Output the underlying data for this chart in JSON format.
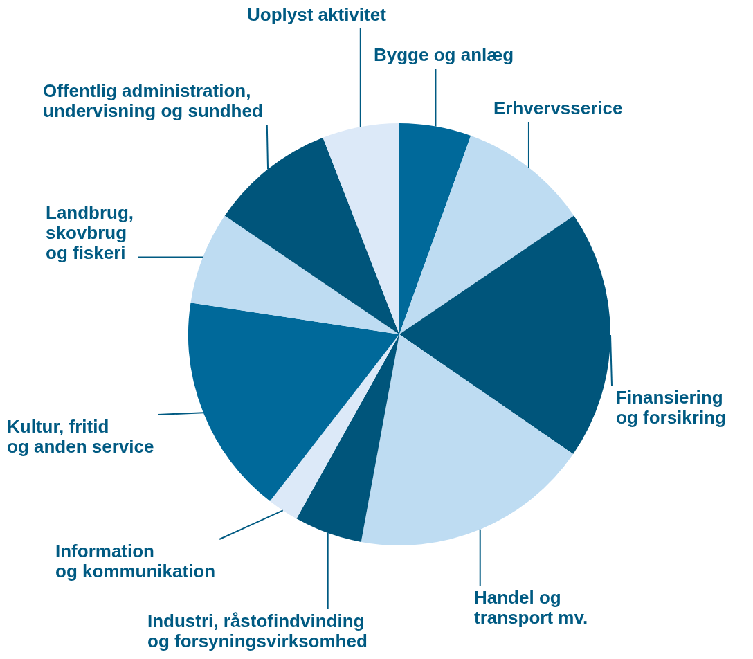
{
  "chart_data": {
    "type": "pie",
    "categories": [
      "Bygge og anlæg",
      "Erhvervsserice",
      "Finansiering\nog forsikring",
      "Handel og\ntransport mv.",
      "Industri, råstofindvinding\nog forsyningsvirksomhed",
      "Information\nog kommunikation",
      "Kultur, fritid\nog anden service",
      "Landbrug,\nskovbrug\nog fiskeri",
      "Offentlig administration,\nundervisning og sundhed",
      "Uoplyst aktivitet"
    ],
    "values": [
      5.5,
      10,
      19.1,
      18.3,
      5.2,
      2.4,
      16.9,
      7.1,
      9.6,
      5.9
    ],
    "colors": [
      "#00699a",
      "#bedcf2",
      "#00557b",
      "#bedcf2",
      "#00557b",
      "#dce9f8",
      "#00699a",
      "#bedcf2",
      "#00557b",
      "#dce9f8"
    ],
    "legend": false
  }
}
